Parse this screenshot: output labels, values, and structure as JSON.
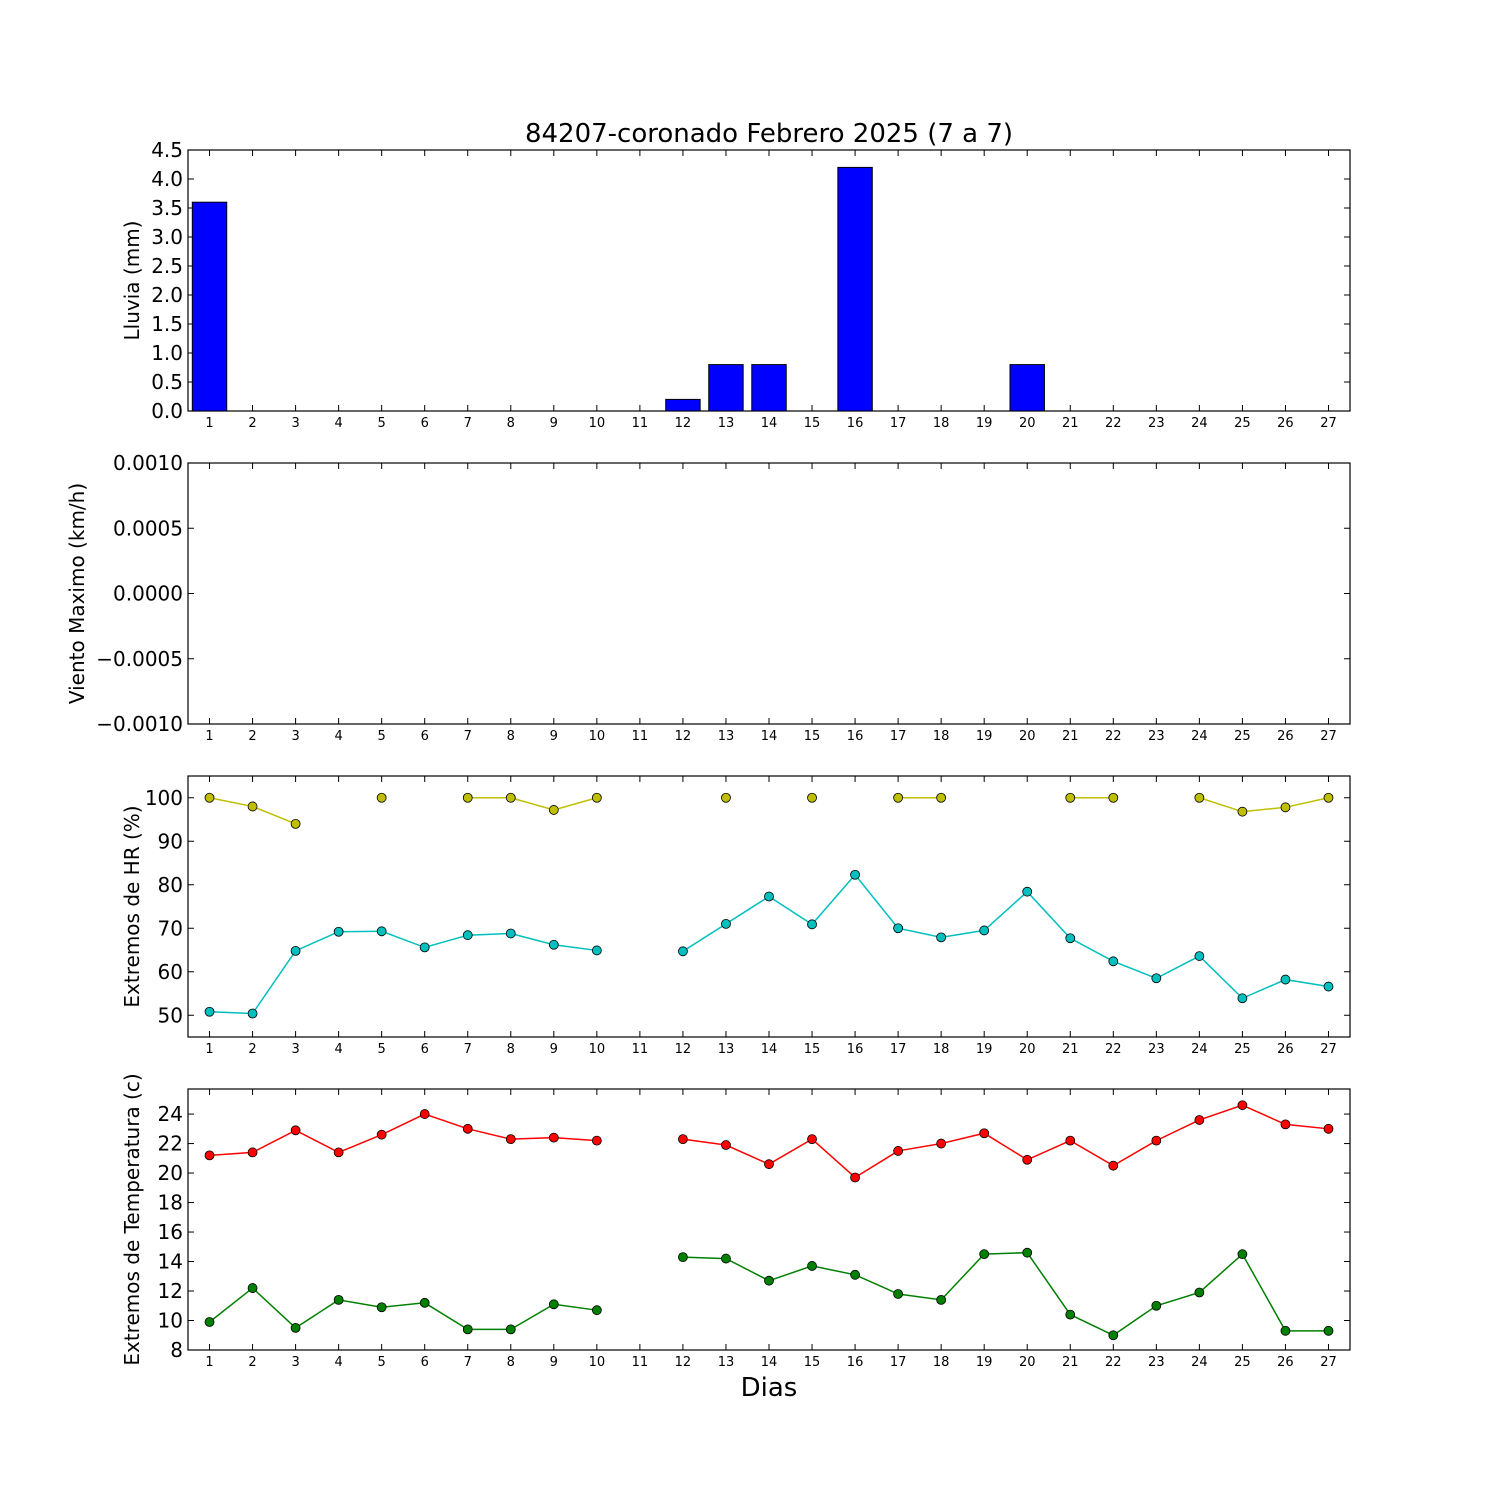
{
  "title": "84207-coronado Febrero 2025  (7 a 7)",
  "xlabel": "Dias",
  "days": [
    1,
    2,
    3,
    4,
    5,
    6,
    7,
    8,
    9,
    10,
    11,
    12,
    13,
    14,
    15,
    16,
    17,
    18,
    19,
    20,
    21,
    22,
    23,
    24,
    25,
    26,
    27
  ],
  "colors": {
    "bar": "#0000ff",
    "hr_max": "#bfbf00",
    "hr_min": "#00bfbf",
    "t_max": "#ff0000",
    "t_min": "#008000"
  },
  "chart_data": [
    {
      "type": "bar",
      "ylabel": "Lluvia (mm)",
      "ylim": [
        0,
        4.5
      ],
      "yticks": [
        0.0,
        0.5,
        1.0,
        1.5,
        2.0,
        2.5,
        3.0,
        3.5,
        4.0,
        4.5
      ],
      "ytick_labels": [
        "0.0",
        "0.5",
        "1.0",
        "1.5",
        "2.0",
        "2.5",
        "3.0",
        "3.5",
        "4.0",
        "4.5"
      ],
      "x": [
        1,
        2,
        3,
        4,
        5,
        6,
        7,
        8,
        9,
        10,
        11,
        12,
        13,
        14,
        15,
        16,
        17,
        18,
        19,
        20,
        21,
        22,
        23,
        24,
        25,
        26,
        27
      ],
      "values": [
        3.6,
        0,
        0,
        0,
        0,
        0,
        0,
        0,
        0,
        0,
        0,
        0.2,
        0.8,
        0.8,
        0,
        4.2,
        0,
        0,
        0,
        0.8,
        0,
        0,
        0,
        0,
        0,
        0,
        0
      ]
    },
    {
      "type": "line",
      "ylabel": "Viento Maximo (km/h)",
      "ylim": [
        -0.001,
        0.001
      ],
      "yticks": [
        -0.001,
        -0.0005,
        0.0,
        0.0005,
        0.001
      ],
      "ytick_labels": [
        "−0.0010",
        "−0.0005",
        "0.0000",
        "0.0005",
        "0.0010"
      ],
      "x": [
        1,
        2,
        3,
        4,
        5,
        6,
        7,
        8,
        9,
        10,
        11,
        12,
        13,
        14,
        15,
        16,
        17,
        18,
        19,
        20,
        21,
        22,
        23,
        24,
        25,
        26,
        27
      ],
      "series": []
    },
    {
      "type": "line",
      "ylabel": "Extremos de HR (%)",
      "ylim": [
        45,
        105
      ],
      "yticks": [
        50,
        60,
        70,
        80,
        90,
        100
      ],
      "ytick_labels": [
        "50",
        "60",
        "70",
        "80",
        "90",
        "100"
      ],
      "x": [
        1,
        2,
        3,
        4,
        5,
        6,
        7,
        8,
        9,
        10,
        11,
        12,
        13,
        14,
        15,
        16,
        17,
        18,
        19,
        20,
        21,
        22,
        23,
        24,
        25,
        26,
        27
      ],
      "series": [
        {
          "color_key": "hr_max",
          "values": [
            100,
            98,
            94,
            null,
            100,
            null,
            100,
            100,
            97.2,
            100,
            null,
            null,
            100,
            null,
            100,
            null,
            100,
            100,
            null,
            null,
            100,
            100,
            null,
            100,
            96.8,
            97.8,
            100
          ]
        },
        {
          "color_key": "hr_min",
          "values": [
            50.8,
            50.4,
            64.8,
            69.2,
            69.3,
            65.6,
            68.4,
            68.8,
            66.2,
            64.9,
            null,
            64.7,
            71,
            77.3,
            70.9,
            82.3,
            70,
            67.9,
            69.5,
            78.4,
            67.7,
            62.4,
            58.5,
            63.6,
            53.9,
            58.2,
            56.6
          ]
        }
      ]
    },
    {
      "type": "line",
      "ylabel": "Extremos de Temperatura (c)",
      "ylim": [
        8,
        25.7
      ],
      "yticks": [
        8,
        10,
        12,
        14,
        16,
        18,
        20,
        22,
        24
      ],
      "ytick_labels": [
        "8",
        "10",
        "12",
        "14",
        "16",
        "18",
        "20",
        "22",
        "24"
      ],
      "x": [
        1,
        2,
        3,
        4,
        5,
        6,
        7,
        8,
        9,
        10,
        11,
        12,
        13,
        14,
        15,
        16,
        17,
        18,
        19,
        20,
        21,
        22,
        23,
        24,
        25,
        26,
        27
      ],
      "series": [
        {
          "color_key": "t_max",
          "values": [
            21.2,
            21.4,
            22.9,
            21.4,
            22.6,
            24,
            23,
            22.3,
            22.4,
            22.2,
            null,
            22.3,
            21.9,
            20.6,
            22.3,
            19.7,
            21.5,
            22,
            22.7,
            20.9,
            22.2,
            20.5,
            22.2,
            23.6,
            24.6,
            23.3,
            23
          ]
        },
        {
          "color_key": "t_min",
          "values": [
            9.9,
            12.2,
            9.5,
            11.4,
            10.9,
            11.2,
            9.4,
            9.4,
            11.1,
            10.7,
            null,
            14.3,
            14.2,
            12.7,
            13.7,
            13.1,
            11.8,
            11.4,
            14.5,
            14.6,
            10.4,
            9,
            11,
            11.9,
            14.5,
            9.3,
            9.3
          ]
        }
      ]
    }
  ]
}
